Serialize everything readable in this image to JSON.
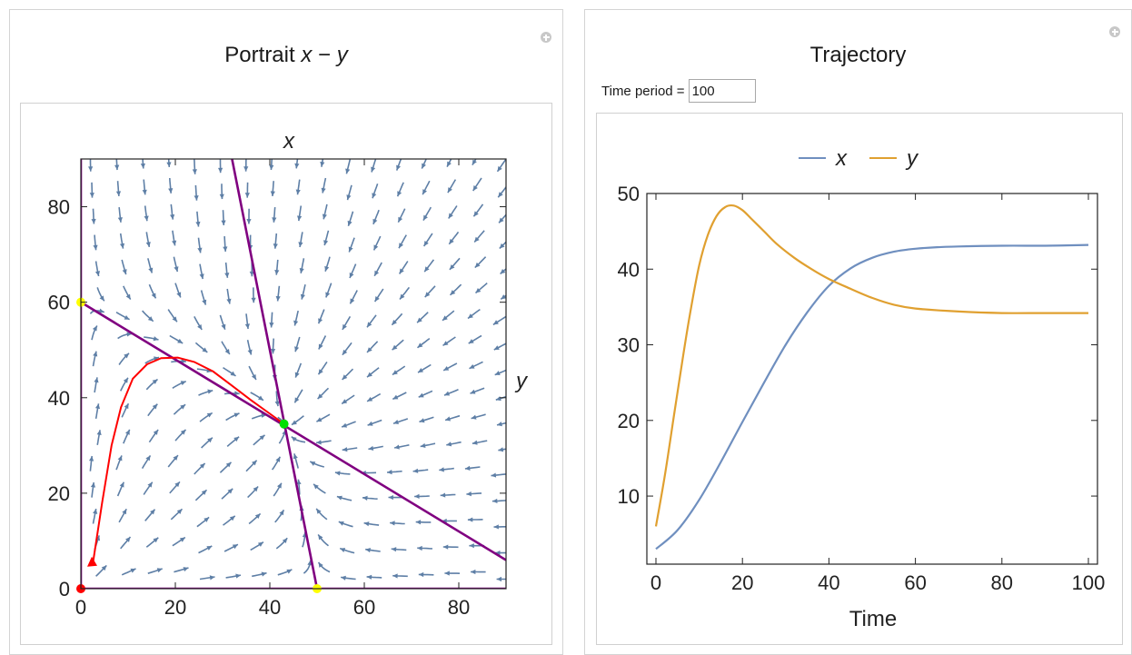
{
  "left_panel": {
    "title_prefix": "Portrait ",
    "title_var_x": "x",
    "title_sep": " − ",
    "title_var_y": "y",
    "icon": "plus-circle-icon"
  },
  "right_panel": {
    "title": "Trajectory",
    "icon": "plus-circle-icon",
    "time_period_label": "Time period =",
    "time_period_value": "100"
  },
  "chart_data": [
    {
      "type": "streamplot",
      "title": "",
      "top_label": "x",
      "right_label": "y",
      "xlim": [
        0,
        90
      ],
      "ylim": [
        0,
        90
      ],
      "x_ticks": [
        0,
        20,
        40,
        60,
        80
      ],
      "y_ticks": [
        0,
        20,
        40,
        60,
        80
      ],
      "stream_color": "#5e7fa6",
      "nullcline_color": "#800080",
      "nullclines": [
        {
          "x": [
            0,
            90
          ],
          "y": [
            60,
            6
          ]
        },
        {
          "x": [
            32,
            50
          ],
          "y": [
            90,
            0
          ]
        },
        {
          "x": [
            0,
            0
          ],
          "y": [
            0,
            90
          ]
        },
        {
          "x": [
            0,
            90
          ],
          "y": [
            0,
            0
          ]
        }
      ],
      "trajectory": {
        "color": "#ff0000",
        "x": [
          2.5,
          4.5,
          6.5,
          8.5,
          11,
          14,
          17,
          20.5,
          24,
          28,
          32,
          36,
          39.5,
          43
        ],
        "y": [
          5,
          18,
          30,
          38,
          44,
          47,
          48.3,
          48.4,
          47.5,
          45.5,
          42.5,
          39.5,
          37,
          34.5
        ]
      },
      "equilibria": [
        {
          "x": 0,
          "y": 0,
          "color": "#ff0000"
        },
        {
          "x": 0,
          "y": 60,
          "color": "#ffff00"
        },
        {
          "x": 50,
          "y": 0,
          "color": "#ffff00"
        },
        {
          "x": 43,
          "y": 34.5,
          "color": "#00e000"
        }
      ]
    },
    {
      "type": "line",
      "title": "",
      "xlabel": "Time",
      "ylabel": "",
      "xlim": [
        0,
        100
      ],
      "ylim": [
        1,
        50
      ],
      "x_ticks": [
        0,
        20,
        40,
        60,
        80,
        100
      ],
      "y_ticks": [
        10,
        20,
        30,
        40,
        50
      ],
      "legend_position": "top",
      "series": [
        {
          "name": "x",
          "color": "#6f8fbf",
          "x": [
            0,
            5,
            10,
            15,
            20,
            25,
            30,
            35,
            40,
            45,
            50,
            55,
            60,
            65,
            70,
            80,
            90,
            100
          ],
          "y": [
            3,
            5.5,
            9.5,
            14.5,
            19.8,
            25,
            30,
            34.3,
            37.8,
            40.1,
            41.5,
            42.3,
            42.7,
            42.9,
            43.0,
            43.1,
            43.1,
            43.2
          ]
        },
        {
          "name": "y",
          "color": "#e0a030",
          "x": [
            0,
            2,
            4,
            6,
            8,
            10,
            12,
            14,
            16,
            18,
            20,
            22,
            25,
            28,
            32,
            36,
            40,
            45,
            50,
            55,
            60,
            70,
            80,
            90,
            100
          ],
          "y": [
            6,
            12.5,
            20,
            27.5,
            34.5,
            40.5,
            44.5,
            47,
            48.2,
            48.4,
            47.8,
            46.7,
            45,
            43.3,
            41.5,
            40,
            38.7,
            37.4,
            36.2,
            35.3,
            34.8,
            34.4,
            34.2,
            34.2,
            34.2
          ]
        }
      ]
    }
  ]
}
